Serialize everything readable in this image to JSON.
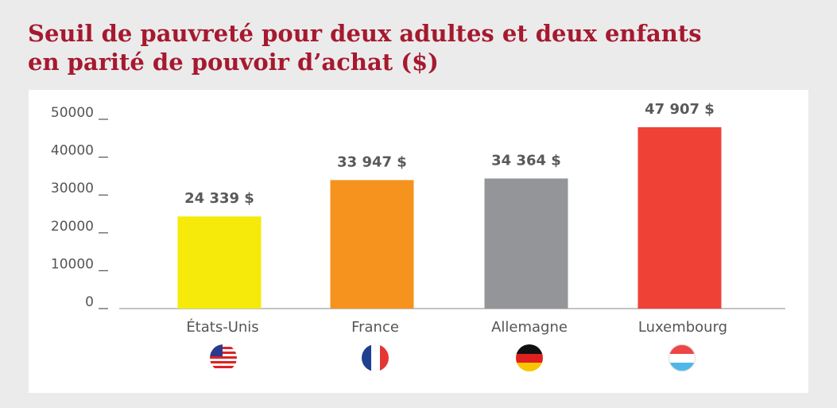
{
  "chart_data": {
    "type": "bar",
    "title": [
      "Seuil de pauvreté pour deux adultes et deux enfants",
      "en parité de pouvoir d’achat ($)"
    ],
    "categories": [
      "États-Unis",
      "France",
      "Allemagne",
      "Luxembourg"
    ],
    "values": [
      24339,
      33947,
      34364,
      47907
    ],
    "value_labels": [
      "24 339 $",
      "33 947 $",
      "34 364 $",
      "47 907 $"
    ],
    "colors": [
      "#f5ea0a",
      "#f6921e",
      "#939598",
      "#ef4136"
    ],
    "ylim": [
      0,
      50000
    ],
    "yticks": [
      0,
      10000,
      20000,
      30000,
      40000,
      50000
    ]
  }
}
